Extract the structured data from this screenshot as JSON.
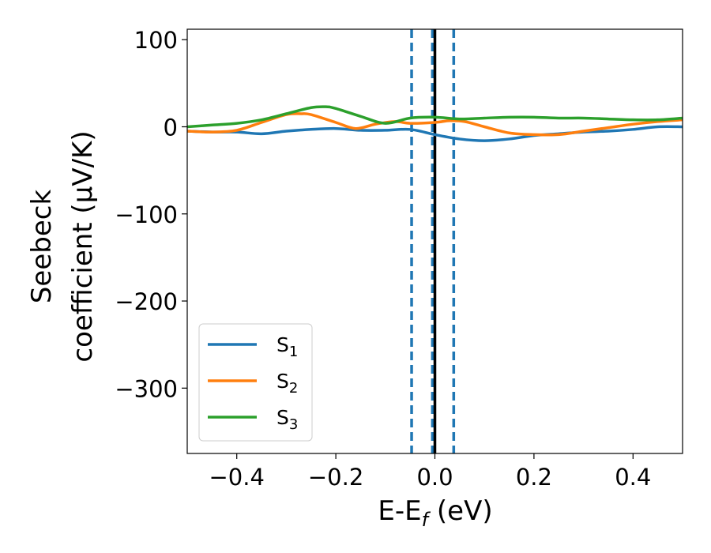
{
  "chart_data": {
    "type": "line",
    "xlabel": {
      "main": "E-E",
      "sub": "f",
      "unit": " (eV)"
    },
    "ylabel": {
      "line1": "Seebeck",
      "line2": "coefficient  (μV/K)"
    },
    "xlim": [
      -0.5,
      0.5
    ],
    "ylim": [
      -375,
      112
    ],
    "xticks": [
      {
        "value": -0.4,
        "label": "−0.4"
      },
      {
        "value": -0.2,
        "label": "−0.2"
      },
      {
        "value": 0.0,
        "label": "0.0"
      },
      {
        "value": 0.2,
        "label": "0.2"
      },
      {
        "value": 0.4,
        "label": "0.4"
      }
    ],
    "yticks": [
      {
        "value": 100,
        "label": "100"
      },
      {
        "value": 0,
        "label": "0"
      },
      {
        "value": -100,
        "label": "−100"
      },
      {
        "value": -200,
        "label": "−200"
      },
      {
        "value": -300,
        "label": "−300"
      }
    ],
    "vlines": [
      {
        "x": -0.047,
        "style": "dashed",
        "color": "#1f77b4"
      },
      {
        "x": -0.005,
        "style": "dashed",
        "color": "#1f77b4"
      },
      {
        "x": 0.038,
        "style": "dashed",
        "color": "#1f77b4"
      },
      {
        "x": 0.0,
        "style": "solid",
        "color": "#000000"
      }
    ],
    "legend_position": "lower-left",
    "grid": false,
    "series": [
      {
        "name": "S",
        "sub": "1",
        "color": "#1f77b4",
        "x": [
          -0.5,
          -0.45,
          -0.4,
          -0.35,
          -0.3,
          -0.25,
          -0.2,
          -0.15,
          -0.1,
          -0.05,
          0.0,
          0.05,
          0.1,
          0.15,
          0.2,
          0.25,
          0.3,
          0.35,
          0.4,
          0.45,
          0.5
        ],
        "y": [
          -5,
          -6,
          -6,
          -8,
          -5,
          -3,
          -2,
          -4,
          -4,
          -3,
          -9,
          -14,
          -16,
          -14,
          -10,
          -8,
          -6,
          -5,
          -3,
          0,
          0
        ]
      },
      {
        "name": "S",
        "sub": "2",
        "color": "#ff7f0e",
        "x": [
          -0.5,
          -0.45,
          -0.4,
          -0.35,
          -0.3,
          -0.27,
          -0.25,
          -0.2,
          -0.16,
          -0.12,
          -0.08,
          -0.05,
          0.0,
          0.03,
          0.06,
          0.1,
          0.15,
          0.2,
          0.25,
          0.3,
          0.35,
          0.4,
          0.45,
          0.5
        ],
        "y": [
          -5,
          -6,
          -4,
          5,
          14,
          15,
          14,
          5,
          -2,
          3,
          6,
          4,
          5,
          7,
          6,
          0,
          -7,
          -9,
          -9,
          -5,
          -1,
          3,
          6,
          8
        ]
      },
      {
        "name": "S",
        "sub": "3",
        "color": "#2ca02c",
        "x": [
          -0.5,
          -0.45,
          -0.4,
          -0.35,
          -0.3,
          -0.25,
          -0.22,
          -0.2,
          -0.15,
          -0.1,
          -0.05,
          0.0,
          0.05,
          0.1,
          0.15,
          0.2,
          0.25,
          0.3,
          0.35,
          0.4,
          0.45,
          0.5
        ],
        "y": [
          0,
          2,
          4,
          8,
          15,
          22,
          23,
          21,
          12,
          4,
          10,
          11,
          9,
          10,
          11,
          11,
          10,
          10,
          9,
          8,
          8,
          10
        ]
      }
    ]
  }
}
